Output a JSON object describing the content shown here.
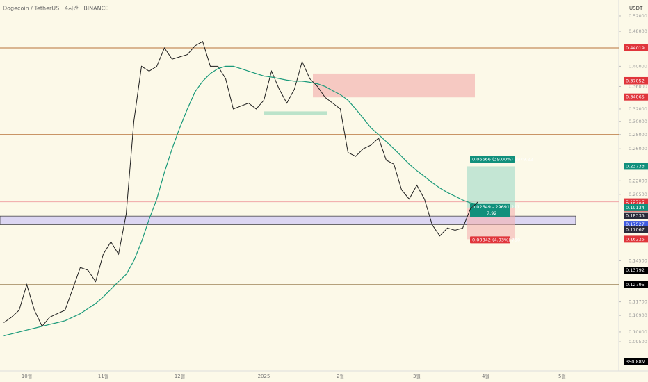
{
  "chart_data": {
    "type": "line",
    "title": "Dogecoin / TetherUS · 4시간 · BINANCE",
    "currency": "USDT",
    "log": true,
    "ylim": [
      0.0828,
      0.549
    ],
    "yticks": [
      {
        "value": 0.52,
        "label": "0.52000"
      },
      {
        "value": 0.48,
        "label": "0.48000"
      },
      {
        "value": 0.4,
        "label": "0.40000"
      },
      {
        "value": 0.36,
        "label": "0.36000"
      },
      {
        "value": 0.32,
        "label": "0.32000"
      },
      {
        "value": 0.3,
        "label": "0.30000"
      },
      {
        "value": 0.28,
        "label": "0.28000"
      },
      {
        "value": 0.26,
        "label": "0.26000"
      },
      {
        "value": 0.22,
        "label": "0.22000"
      },
      {
        "value": 0.205,
        "label": "0.20500"
      },
      {
        "value": 0.145,
        "label": "0.14500"
      },
      {
        "value": 0.117,
        "label": "0.11700"
      },
      {
        "value": 0.109,
        "label": "0.10900"
      },
      {
        "value": 0.1,
        "label": "0.10000"
      },
      {
        "value": 0.095,
        "label": "0.09500"
      }
    ],
    "categories": [
      null,
      null,
      null,
      "10월",
      null,
      null,
      null,
      null,
      null,
      null,
      null,
      null,
      null,
      "11월",
      null,
      null,
      null,
      null,
      null,
      null,
      null,
      null,
      null,
      "12월",
      null,
      null,
      null,
      null,
      null,
      null,
      null,
      null,
      null,
      null,
      "2025",
      null,
      null,
      null,
      null,
      null,
      null,
      null,
      null,
      null,
      "2월",
      null,
      null,
      null,
      null,
      null,
      null,
      null,
      null,
      null,
      "3월",
      null,
      null,
      null,
      null,
      null,
      null,
      null,
      null,
      "4월",
      null,
      null,
      null,
      null,
      null,
      null,
      null,
      null,
      null,
      "5월",
      null,
      null,
      null,
      null,
      null,
      null
    ],
    "series": [
      {
        "color": "#1e1e1e",
        "values": [
          0.105,
          0.108,
          0.112,
          0.128,
          0.112,
          0.103,
          0.108,
          0.11,
          0.112,
          0.125,
          0.14,
          0.138,
          0.13,
          0.15,
          0.16,
          0.15,
          0.185,
          0.3,
          0.4,
          0.39,
          0.4,
          0.44,
          0.415,
          0.42,
          0.425,
          0.445,
          0.455,
          0.4,
          0.4,
          0.375,
          0.32,
          0.325,
          0.33,
          0.32,
          0.335,
          0.39,
          0.355,
          0.33,
          0.355,
          0.41,
          0.375,
          0.36,
          0.34,
          0.33,
          0.32,
          0.255,
          0.25,
          0.26,
          0.265,
          0.275,
          0.245,
          0.24,
          0.21,
          0.2,
          0.215,
          0.2,
          0.175,
          0.165,
          0.172,
          0.17,
          0.172,
          0.19,
          0.197,
          null,
          null,
          null,
          null,
          null,
          null,
          null,
          null,
          null,
          null,
          null,
          null,
          null,
          null,
          null,
          null,
          null
        ]
      },
      {
        "color": "#1a9a7a",
        "values": [
          0.098,
          0.099,
          0.1,
          0.101,
          0.102,
          0.103,
          0.104,
          0.105,
          0.106,
          0.108,
          0.11,
          0.113,
          0.116,
          0.12,
          0.125,
          0.13,
          0.135,
          0.145,
          0.16,
          0.18,
          0.2,
          0.23,
          0.26,
          0.29,
          0.32,
          0.35,
          0.37,
          0.385,
          0.395,
          0.4,
          0.4,
          0.395,
          0.39,
          0.385,
          0.38,
          0.378,
          0.375,
          0.372,
          0.37,
          0.37,
          0.368,
          0.365,
          0.36,
          0.352,
          0.345,
          0.335,
          0.32,
          0.305,
          0.29,
          0.28,
          0.27,
          0.26,
          0.25,
          0.24,
          0.232,
          0.225,
          0.218,
          0.212,
          0.207,
          0.203,
          0.199,
          0.196,
          0.195,
          null,
          null,
          null,
          null,
          null,
          null,
          null,
          null,
          null,
          null,
          null,
          null,
          null,
          null,
          null,
          null,
          null
        ]
      }
    ],
    "levels": [
      {
        "value": 0.44019,
        "color": "#b8743a"
      },
      {
        "value": 0.37052,
        "color": "#b7a640"
      },
      {
        "value": 0.28,
        "color": "#b8743a"
      },
      {
        "value": 0.19716,
        "color": "#f0a8a8"
      },
      {
        "value": 0.12795,
        "color": "#8a6d3b"
      }
    ],
    "zones": [
      {
        "low": 0.175,
        "high": 0.183,
        "color": "#dcd6f2"
      },
      {
        "low": 0.34,
        "high": 0.385,
        "color": "#f2a9a9"
      },
      {
        "low": 0.31,
        "high": 0.316,
        "color": "#8fd3b5"
      }
    ],
    "price_labels": [
      {
        "value": 0.44019,
        "label": "0.44019",
        "color": "#e0353b"
      },
      {
        "value": 0.37125,
        "label": "0.37125",
        "color": "#e0353b"
      },
      {
        "value": 0.37052,
        "label": "0.37052",
        "color": "#e0353b"
      },
      {
        "value": 0.34065,
        "label": "0.34065",
        "color": "#e0353b"
      },
      {
        "value": 0.23733,
        "label": "0.23733",
        "color": "#11907c"
      },
      {
        "value": 0.19716,
        "label": "0.19716",
        "color": "#e0353b"
      },
      {
        "value": 0.19494,
        "label": "0.19494",
        "color": "#e0353b"
      },
      {
        "value": 0.19134,
        "label": "0.19134",
        "color": "#11907c"
      },
      {
        "value": 0.18335,
        "label": "0.18335",
        "color": "#2b2b3a"
      },
      {
        "value": 0.17527,
        "label": "0.17527",
        "color": "#3f5be0"
      },
      {
        "value": 0.17067,
        "label": "0.17067",
        "color": "#2b2b3a"
      },
      {
        "value": 0.16225,
        "label": "0.16225",
        "color": "#e0353b"
      },
      {
        "value": 0.13792,
        "label": "0.13792",
        "color": "#000000"
      },
      {
        "value": 0.12795,
        "label": "0.12795",
        "color": "#000000"
      }
    ],
    "countdown": "10:36",
    "volume_label": "350.88M",
    "position": {
      "target": 0.23733,
      "entry": 0.19134,
      "stop": 0.16225,
      "target_label": "0.06666 (39.00%) 2979.22",
      "entry_label": "0.02649 - 29691.211",
      "entry_sub": "7.92",
      "stop_label": "0.00842 (4.93%) 750"
    }
  }
}
